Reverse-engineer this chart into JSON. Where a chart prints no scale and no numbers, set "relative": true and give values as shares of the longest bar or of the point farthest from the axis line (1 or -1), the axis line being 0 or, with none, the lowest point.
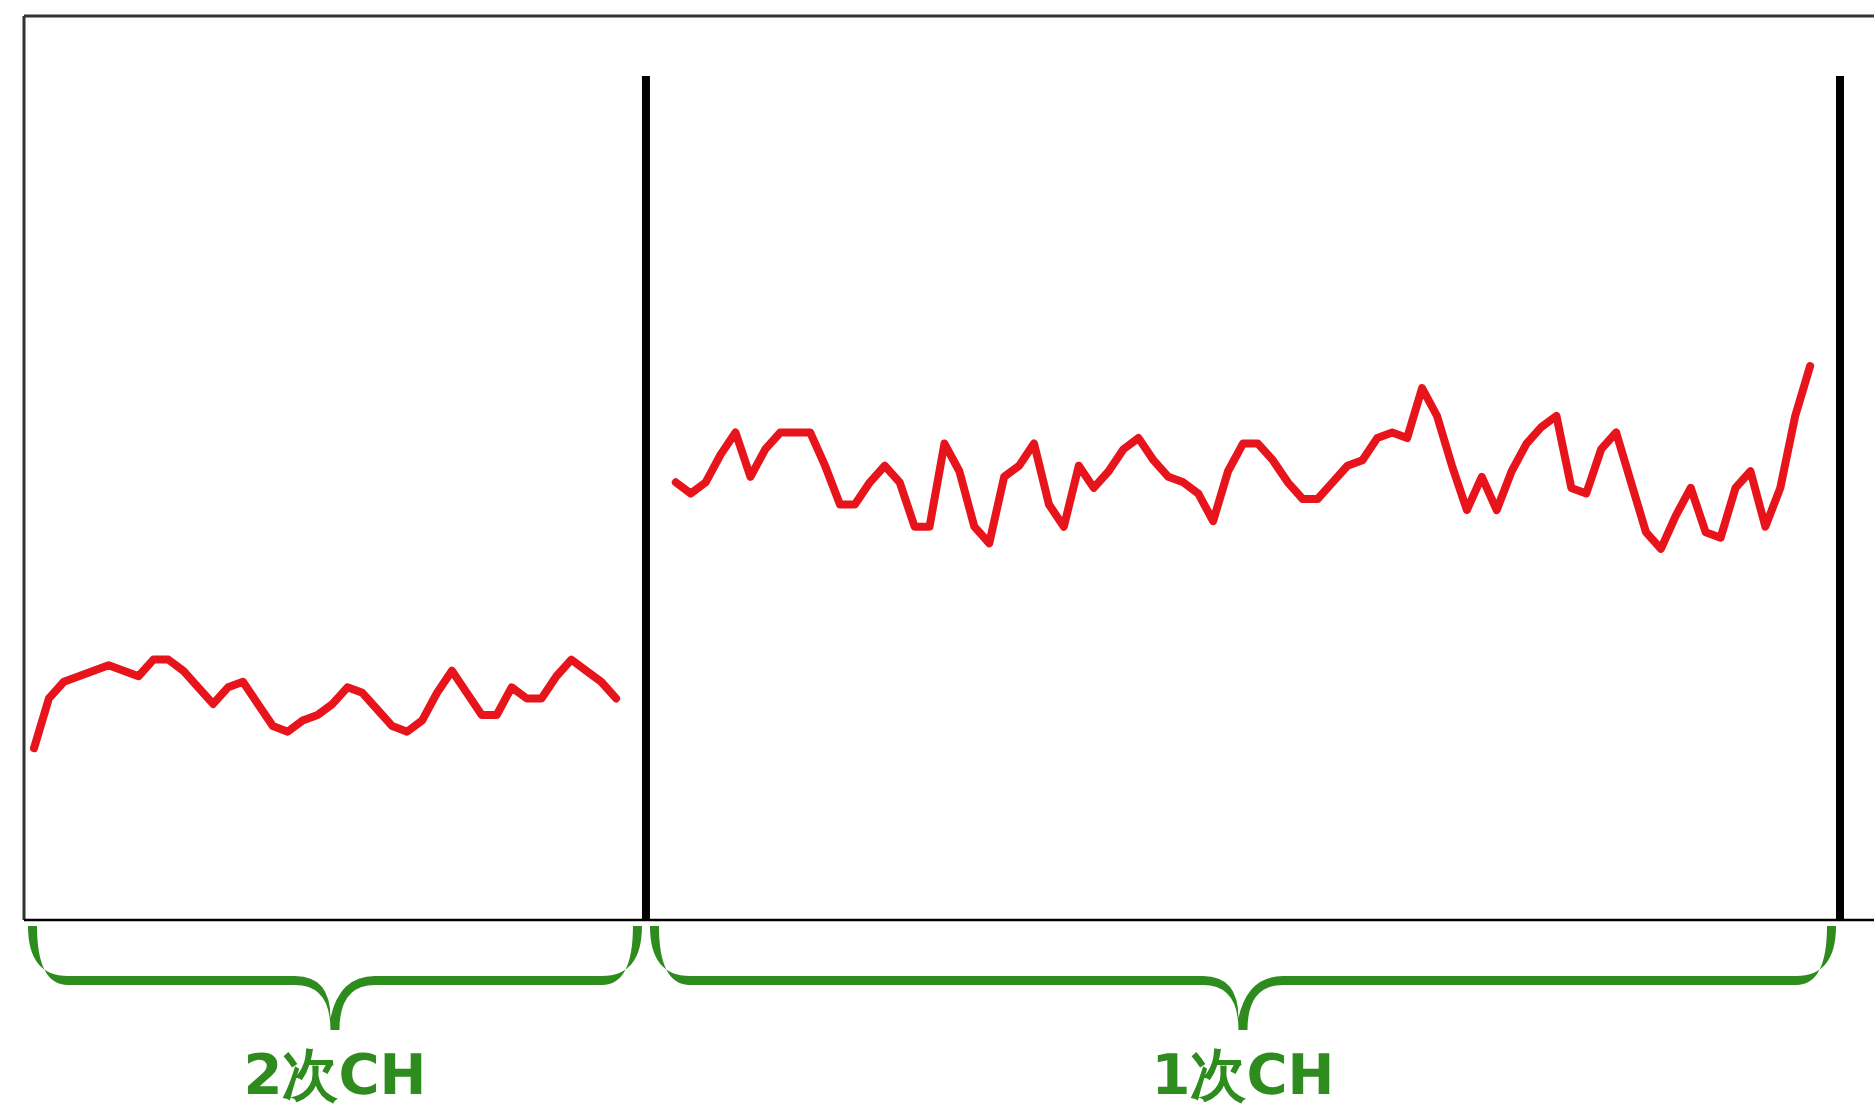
{
  "chart_data": {
    "type": "line",
    "relative": true,
    "categories": [
      null,
      null,
      null,
      null,
      null,
      null,
      null,
      null,
      null,
      null,
      null,
      null,
      null,
      null,
      null,
      null,
      null,
      null,
      null,
      null,
      null,
      null,
      null,
      null,
      null,
      null,
      null,
      null,
      null,
      null,
      null,
      null,
      null,
      null,
      null,
      null,
      null,
      null,
      null,
      null,
      null,
      null,
      null,
      null,
      null,
      null,
      null,
      null,
      null,
      null,
      null,
      null,
      null,
      null,
      null,
      null,
      null,
      null,
      null,
      null,
      null,
      null,
      null,
      null,
      null,
      null,
      null,
      null,
      null,
      null,
      null,
      null,
      null,
      null,
      null,
      null,
      null,
      null,
      null,
      null,
      null,
      null,
      null,
      null,
      null,
      null,
      null,
      null,
      null,
      null,
      null,
      null,
      null,
      null,
      null,
      null,
      null,
      null,
      null,
      null,
      null,
      null,
      null,
      null,
      null,
      null,
      null,
      null,
      null,
      null,
      null,
      null,
      null,
      null,
      null,
      null,
      null,
      null,
      null,
      null,
      null,
      null
    ],
    "series": [
      {
        "color": "#e8141c",
        "values": [
          0.31,
          0.4,
          0.43,
          0.44,
          0.45,
          0.46,
          0.45,
          0.44,
          0.47,
          0.47,
          0.45,
          0.42,
          0.39,
          0.42,
          0.43,
          0.39,
          0.35,
          0.34,
          0.36,
          0.37,
          0.39,
          0.42,
          0.41,
          0.38,
          0.35,
          0.34,
          0.36,
          0.41,
          0.45,
          0.41,
          0.37,
          0.37,
          0.42,
          0.4,
          0.4,
          0.44,
          0.47,
          0.45,
          0.43,
          0.4,
          null,
          null,
          null,
          null,
          null,
          null,
          null,
          null,
          null,
          null,
          null,
          null,
          null,
          null,
          null,
          null,
          null,
          null,
          null,
          null,
          null,
          null,
          null,
          null,
          null,
          null,
          null,
          null,
          null,
          null,
          null,
          null,
          null,
          null,
          null,
          null,
          null,
          null,
          null,
          null,
          null,
          null,
          null,
          null,
          null,
          null,
          null,
          null,
          null,
          null,
          null,
          null,
          null,
          null,
          null,
          null,
          null,
          null,
          null,
          null,
          null,
          null,
          null,
          null,
          null,
          null,
          null,
          null,
          null,
          null,
          null,
          null,
          null,
          null,
          null,
          null,
          null,
          null,
          null,
          null,
          null,
          null
        ]
      },
      {
        "color": "#e8141c",
        "values": [
          null,
          null,
          null,
          null,
          null,
          null,
          null,
          null,
          null,
          null,
          null,
          null,
          null,
          null,
          null,
          null,
          null,
          null,
          null,
          null,
          null,
          null,
          null,
          null,
          null,
          null,
          null,
          null,
          null,
          null,
          null,
          null,
          null,
          null,
          null,
          null,
          null,
          null,
          null,
          null,
          null,
          null,
          null,
          0.79,
          0.77,
          0.79,
          0.84,
          0.88,
          0.8,
          0.85,
          0.88,
          0.88,
          0.88,
          0.82,
          0.75,
          0.75,
          0.79,
          0.82,
          0.79,
          0.71,
          0.71,
          0.86,
          0.81,
          0.71,
          0.68,
          0.8,
          0.82,
          0.86,
          0.75,
          0.71,
          0.82,
          0.78,
          0.81,
          0.85,
          0.87,
          0.83,
          0.8,
          0.79,
          0.77,
          0.72,
          0.81,
          0.86,
          0.86,
          0.83,
          0.79,
          0.76,
          0.76,
          0.79,
          0.82,
          0.83,
          0.87,
          0.88,
          0.87,
          0.96,
          0.91,
          0.82,
          0.74,
          0.8,
          0.74,
          0.81,
          0.86,
          0.89,
          0.91,
          0.78,
          0.77,
          0.85,
          0.88,
          0.79,
          0.7,
          0.67,
          0.73,
          0.78,
          0.7,
          0.69,
          0.78,
          0.81,
          0.71,
          0.78,
          0.91,
          1.0,
          null,
          null
        ]
      }
    ],
    "annotations": [
      "2次CH",
      "1次CH"
    ]
  }
}
